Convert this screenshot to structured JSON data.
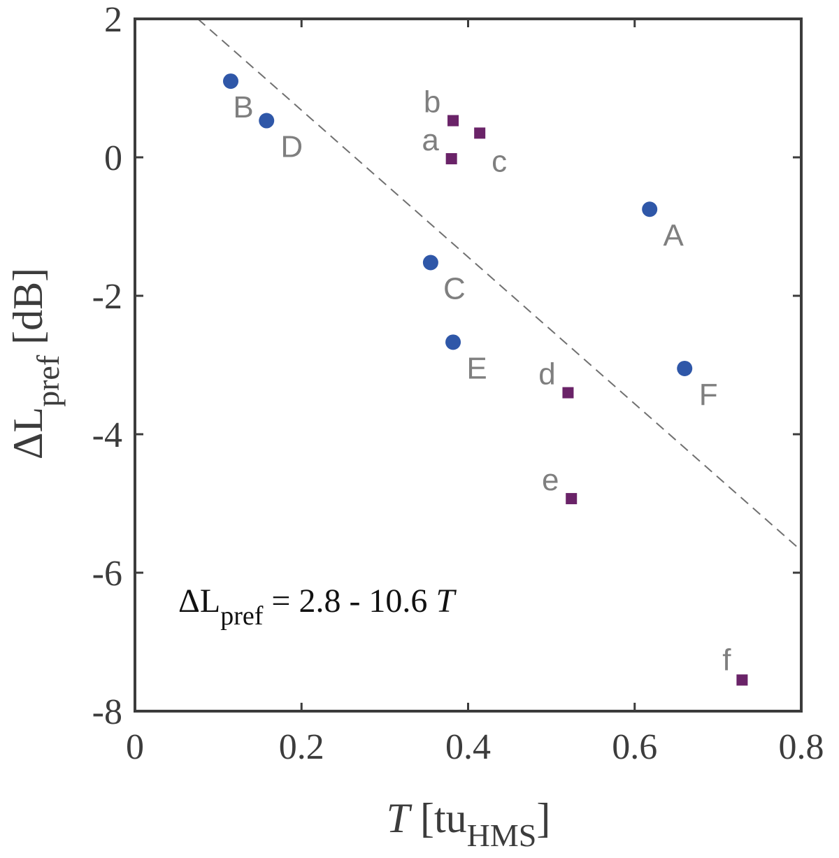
{
  "chart_data": {
    "type": "scatter",
    "title": "",
    "xlabel": {
      "symbol": "T",
      "unit_open": " [tu",
      "unit_sub": "HMS",
      "unit_close": "]"
    },
    "ylabel": {
      "symbol": "ΔL",
      "sub": "pref",
      "unit": " [dB]"
    },
    "xlim": [
      0,
      0.8
    ],
    "ylim": [
      -8,
      2
    ],
    "xticks": [
      0,
      0.2,
      0.4,
      0.6,
      0.8
    ],
    "yticks": [
      -8,
      -6,
      -4,
      -2,
      0,
      2
    ],
    "xtick_labels": [
      "0",
      "0.2",
      "0.4",
      "0.6",
      "0.8"
    ],
    "ytick_labels": [
      "-8",
      "-6",
      "-4",
      "-2",
      "0",
      "2"
    ],
    "grid": false,
    "series": [
      {
        "name": "circles",
        "marker": "circle",
        "color": "#2f57a8",
        "points": [
          {
            "label": "A",
            "x": 0.618,
            "y": -0.75
          },
          {
            "label": "B",
            "x": 0.115,
            "y": 1.1
          },
          {
            "label": "C",
            "x": 0.355,
            "y": -1.52
          },
          {
            "label": "D",
            "x": 0.158,
            "y": 0.53
          },
          {
            "label": "E",
            "x": 0.382,
            "y": -2.67
          },
          {
            "label": "F",
            "x": 0.66,
            "y": -3.05
          }
        ]
      },
      {
        "name": "squares",
        "marker": "square",
        "color": "#6a2368",
        "points": [
          {
            "label": "a",
            "x": 0.38,
            "y": -0.02
          },
          {
            "label": "b",
            "x": 0.382,
            "y": 0.53
          },
          {
            "label": "c",
            "x": 0.414,
            "y": 0.35
          },
          {
            "label": "d",
            "x": 0.52,
            "y": -3.4
          },
          {
            "label": "e",
            "x": 0.524,
            "y": -4.93
          },
          {
            "label": "f",
            "x": 0.729,
            "y": -7.55
          }
        ]
      }
    ],
    "fit_line": {
      "intercept": 2.8,
      "slope": -10.6,
      "style": "dashed",
      "color": "#707070"
    },
    "annotation": {
      "prefix": "ΔL",
      "sub": "pref",
      "rest": " = 2.8 - 10.6 ",
      "var": "T"
    }
  }
}
